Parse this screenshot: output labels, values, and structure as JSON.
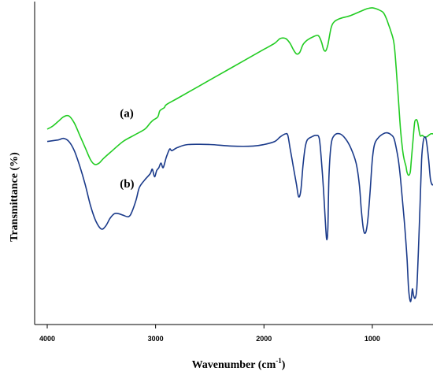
{
  "chart_data": {
    "type": "line",
    "xlabel": "Wavenumber (cm",
    "xlabel_sup": "-1",
    "xlabel_close": ")",
    "ylabel": "Transmittance (%)",
    "xlim": [
      4000,
      440
    ],
    "x_reversed": true,
    "xticks": [
      4000,
      3000,
      2000,
      1000
    ],
    "tick_labels": [
      "4000",
      "3000",
      "2000",
      "1000"
    ],
    "ylim": [
      0,
      100
    ],
    "grid": false,
    "legend": "none",
    "series": [
      {
        "label": "(a)",
        "label_at": [
          3330,
          64
        ],
        "color": "#22cc22",
        "points": [
          [
            4000,
            60
          ],
          [
            3950,
            61
          ],
          [
            3900,
            62.5
          ],
          [
            3850,
            64
          ],
          [
            3800,
            64.3
          ],
          [
            3750,
            62
          ],
          [
            3700,
            58
          ],
          [
            3650,
            54
          ],
          [
            3600,
            50
          ],
          [
            3560,
            48.5
          ],
          [
            3520,
            49
          ],
          [
            3480,
            50.5
          ],
          [
            3400,
            53
          ],
          [
            3300,
            56
          ],
          [
            3200,
            58
          ],
          [
            3100,
            60
          ],
          [
            3050,
            62
          ],
          [
            3020,
            63
          ],
          [
            2980,
            64
          ],
          [
            2960,
            66
          ],
          [
            2920,
            67
          ],
          [
            2900,
            68
          ],
          [
            2800,
            70
          ],
          [
            2600,
            74
          ],
          [
            2400,
            78
          ],
          [
            2200,
            82
          ],
          [
            2000,
            86
          ],
          [
            1900,
            88
          ],
          [
            1850,
            89.5
          ],
          [
            1800,
            89.5
          ],
          [
            1760,
            88
          ],
          [
            1730,
            86
          ],
          [
            1700,
            84.5
          ],
          [
            1670,
            85
          ],
          [
            1640,
            87.5
          ],
          [
            1600,
            89
          ],
          [
            1550,
            90
          ],
          [
            1500,
            90.5
          ],
          [
            1470,
            88.5
          ],
          [
            1450,
            86
          ],
          [
            1430,
            85.5
          ],
          [
            1410,
            87.5
          ],
          [
            1380,
            93
          ],
          [
            1350,
            95
          ],
          [
            1300,
            96
          ],
          [
            1200,
            97
          ],
          [
            1100,
            98.5
          ],
          [
            1050,
            99.2
          ],
          [
            1000,
            99.5
          ],
          [
            950,
            99
          ],
          [
            900,
            98
          ],
          [
            870,
            96
          ],
          [
            850,
            94
          ],
          [
            830,
            92
          ],
          [
            800,
            88
          ],
          [
            780,
            80
          ],
          [
            760,
            70
          ],
          [
            740,
            60
          ],
          [
            720,
            53
          ],
          [
            705,
            50
          ],
          [
            690,
            48
          ],
          [
            680,
            46
          ],
          [
            665,
            45
          ],
          [
            650,
            46
          ],
          [
            640,
            50
          ],
          [
            625,
            56
          ],
          [
            610,
            62
          ],
          [
            600,
            63
          ],
          [
            590,
            63
          ],
          [
            580,
            62
          ],
          [
            560,
            58
          ],
          [
            540,
            58
          ],
          [
            520,
            57.5
          ],
          [
            500,
            57.5
          ],
          [
            480,
            58
          ],
          [
            460,
            58.5
          ],
          [
            440,
            58.5
          ]
        ]
      },
      {
        "label": "(b)",
        "label_at": [
          3330,
          41
        ],
        "color": "#1a3a8a",
        "points": [
          [
            4000,
            56
          ],
          [
            3900,
            56.5
          ],
          [
            3850,
            57
          ],
          [
            3800,
            56
          ],
          [
            3750,
            53
          ],
          [
            3700,
            48
          ],
          [
            3650,
            42
          ],
          [
            3600,
            35
          ],
          [
            3550,
            30
          ],
          [
            3500,
            27.5
          ],
          [
            3460,
            28.5
          ],
          [
            3420,
            31
          ],
          [
            3380,
            32.5
          ],
          [
            3340,
            32.5
          ],
          [
            3300,
            32
          ],
          [
            3250,
            31.5
          ],
          [
            3220,
            33
          ],
          [
            3180,
            37
          ],
          [
            3150,
            41
          ],
          [
            3100,
            43.5
          ],
          [
            3050,
            45.5
          ],
          [
            3030,
            47
          ],
          [
            3010,
            44.5
          ],
          [
            2990,
            46.5
          ],
          [
            2970,
            47.5
          ],
          [
            2950,
            49
          ],
          [
            2930,
            47.5
          ],
          [
            2900,
            51
          ],
          [
            2870,
            53.5
          ],
          [
            2850,
            53
          ],
          [
            2800,
            54
          ],
          [
            2700,
            55
          ],
          [
            2500,
            55
          ],
          [
            2300,
            54.5
          ],
          [
            2100,
            54.5
          ],
          [
            2000,
            55
          ],
          [
            1900,
            56
          ],
          [
            1850,
            57.5
          ],
          [
            1800,
            58.5
          ],
          [
            1780,
            58
          ],
          [
            1760,
            54
          ],
          [
            1730,
            48
          ],
          [
            1700,
            42
          ],
          [
            1680,
            38
          ],
          [
            1660,
            40
          ],
          [
            1640,
            48
          ],
          [
            1620,
            54
          ],
          [
            1600,
            56.5
          ],
          [
            1560,
            57.5
          ],
          [
            1520,
            58
          ],
          [
            1490,
            57
          ],
          [
            1470,
            50
          ],
          [
            1450,
            40
          ],
          [
            1430,
            28
          ],
          [
            1420,
            24
          ],
          [
            1410,
            28
          ],
          [
            1400,
            45
          ],
          [
            1380,
            55
          ],
          [
            1350,
            58
          ],
          [
            1300,
            58.5
          ],
          [
            1250,
            57
          ],
          [
            1200,
            54
          ],
          [
            1150,
            49
          ],
          [
            1120,
            42
          ],
          [
            1100,
            33
          ],
          [
            1080,
            27
          ],
          [
            1060,
            26.5
          ],
          [
            1040,
            31
          ],
          [
            1020,
            40
          ],
          [
            1000,
            50
          ],
          [
            980,
            55
          ],
          [
            950,
            57
          ],
          [
            900,
            58.5
          ],
          [
            860,
            58.8
          ],
          [
            820,
            58
          ],
          [
            800,
            57
          ],
          [
            780,
            54
          ],
          [
            760,
            50
          ],
          [
            740,
            44
          ],
          [
            720,
            36
          ],
          [
            700,
            28
          ],
          [
            680,
            18
          ],
          [
            665,
            8
          ],
          [
            650,
            4
          ],
          [
            640,
            5
          ],
          [
            630,
            8
          ],
          [
            620,
            6
          ],
          [
            605,
            5
          ],
          [
            590,
            8
          ],
          [
            575,
            20
          ],
          [
            560,
            35
          ],
          [
            545,
            50
          ],
          [
            530,
            56
          ],
          [
            515,
            57.5
          ],
          [
            500,
            56
          ],
          [
            480,
            50
          ],
          [
            465,
            44
          ],
          [
            450,
            42
          ],
          [
            440,
            42
          ]
        ]
      }
    ]
  }
}
